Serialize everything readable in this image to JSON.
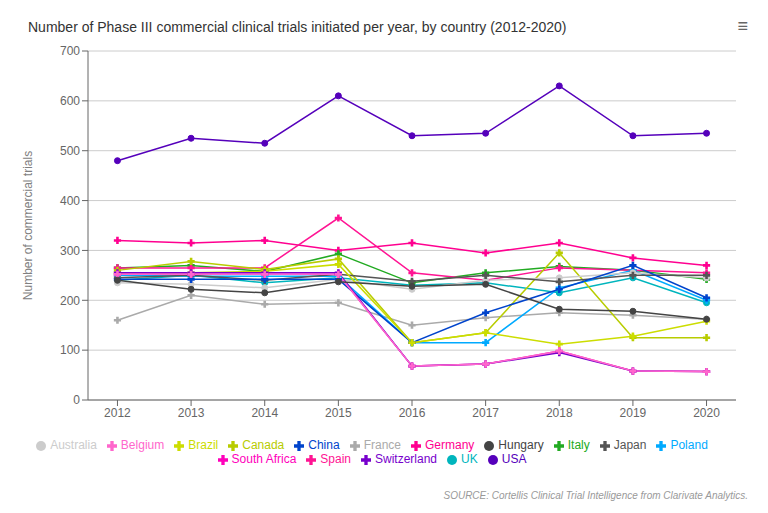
{
  "chart_data": {
    "type": "line",
    "title": "Number of Phase III commercial clinical trials initiated per year, by country (2012-2020)",
    "y_label": "Number of commercial trials",
    "x": [
      2012,
      2013,
      2014,
      2015,
      2016,
      2017,
      2018,
      2019,
      2020
    ],
    "xlim": [
      2011.6,
      2020.4
    ],
    "xticks": [
      2012,
      2013,
      2014,
      2015,
      2016,
      2017,
      2018,
      2019,
      2020
    ],
    "ylim": [
      0,
      700
    ],
    "yticks": [
      0,
      100,
      200,
      300,
      400,
      500,
      600,
      700
    ],
    "grid": true,
    "legend": "bottom",
    "annotations": [
      "≡",
      "SOURCE: Cortellis Clinical Trial Intelligence from Clarivate Analytics."
    ],
    "series": [
      {
        "name": "UK",
        "values": [
          240,
          250,
          235,
          245,
          230,
          235,
          215,
          245,
          195
        ],
        "color": "#00b5bd",
        "marker": "circle"
      },
      {
        "name": "Germany",
        "values": [
          320,
          315,
          320,
          300,
          315,
          295,
          315,
          285,
          270
        ],
        "color": "#ff0090",
        "marker": "plus"
      },
      {
        "name": "France",
        "values": [
          160,
          210,
          192,
          195,
          150,
          165,
          175,
          170,
          162
        ],
        "color": "#aaaaaa",
        "marker": "plus"
      },
      {
        "name": "Italy",
        "values": [
          265,
          270,
          258,
          293,
          235,
          255,
          268,
          260,
          242
        ],
        "color": "#22aa22",
        "marker": "plus"
      },
      {
        "name": "Spain",
        "values": [
          265,
          265,
          265,
          365,
          255,
          240,
          265,
          260,
          255
        ],
        "color": "#ff1493",
        "marker": "plus"
      },
      {
        "name": "Poland",
        "values": [
          250,
          248,
          248,
          248,
          115,
          115,
          225,
          260,
          200
        ],
        "color": "#00aaff",
        "marker": "plus"
      },
      {
        "name": "USA",
        "values": [
          480,
          525,
          515,
          610,
          530,
          535,
          630,
          530,
          535
        ],
        "color": "#5500bb",
        "marker": "circle"
      },
      {
        "name": "Canada",
        "values": [
          260,
          278,
          262,
          283,
          115,
          135,
          295,
          125,
          125
        ],
        "color": "#b8cc00",
        "marker": "plus"
      },
      {
        "name": "Australia",
        "values": [
          235,
          232,
          225,
          242,
          222,
          240,
          245,
          255,
          245
        ],
        "color": "#cccccc",
        "marker": "circle"
      },
      {
        "name": "Japan",
        "values": [
          245,
          250,
          240,
          252,
          238,
          250,
          237,
          250,
          250
        ],
        "color": "#555555",
        "marker": "plus"
      },
      {
        "name": "China",
        "values": [
          242,
          242,
          242,
          242,
          115,
          175,
          222,
          270,
          205
        ],
        "color": "#0044cc",
        "marker": "plus"
      },
      {
        "name": "Brazil",
        "values": [
          255,
          255,
          258,
          272,
          115,
          135,
          112,
          128,
          158
        ],
        "color": "#ccdd00",
        "marker": "plus"
      },
      {
        "name": "South Africa",
        "values": [
          252,
          252,
          252,
          252,
          68,
          72,
          98,
          58,
          57
        ],
        "color": "#ff00bb",
        "marker": "plus"
      },
      {
        "name": "Switzerland",
        "values": [
          255,
          255,
          255,
          255,
          68,
          72,
          95,
          58,
          57
        ],
        "color": "#7700cc",
        "marker": "plus"
      },
      {
        "name": "Belgium",
        "values": [
          252,
          252,
          252,
          252,
          68,
          72,
          98,
          58,
          57
        ],
        "color": "#ff66cc",
        "marker": "plus"
      },
      {
        "name": "Hungary",
        "values": [
          240,
          222,
          215,
          237,
          228,
          232,
          182,
          178,
          162
        ],
        "color": "#444444",
        "marker": "circle"
      }
    ]
  }
}
